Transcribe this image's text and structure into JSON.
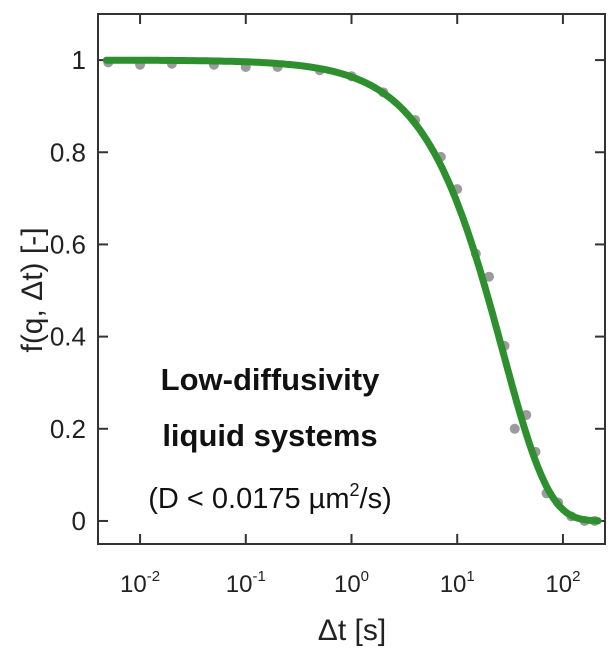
{
  "chart_data": {
    "type": "line",
    "title": "",
    "xlabel": "Δt [s]",
    "ylabel": "f(q, Δt) [-]",
    "x_scale": "log",
    "xlim": [
      0.004,
      250
    ],
    "ylim": [
      -0.05,
      1.1
    ],
    "x_ticks": [
      {
        "value": 0.01,
        "base": "10",
        "exp": "-2"
      },
      {
        "value": 0.1,
        "base": "10",
        "exp": "-1"
      },
      {
        "value": 1,
        "base": "10",
        "exp": "0"
      },
      {
        "value": 10,
        "base": "10",
        "exp": "1"
      },
      {
        "value": 100,
        "base": "10",
        "exp": "2"
      }
    ],
    "y_ticks": [
      {
        "value": 0,
        "label": "0"
      },
      {
        "value": 0.2,
        "label": "0.2"
      },
      {
        "value": 0.4,
        "label": "0.4"
      },
      {
        "value": 0.6,
        "label": "0.6"
      },
      {
        "value": 0.8,
        "label": "0.8"
      },
      {
        "value": 1,
        "label": "1"
      }
    ],
    "grid": false,
    "annotation": {
      "line1": "Low-diffusivity",
      "line2": "liquid systems",
      "line3_prefix": "(D < 0.0175 µm",
      "line3_sup": "2",
      "line3_suffix": "/s)"
    },
    "series": [
      {
        "kind": "points",
        "color": "#7a7a7a",
        "x": [
          0.005,
          0.01,
          0.02,
          0.05,
          0.1,
          0.2,
          0.5,
          1,
          2,
          4,
          7,
          10,
          15,
          20,
          28,
          35,
          45,
          55,
          70,
          90,
          120,
          160,
          200
        ],
        "y": [
          0.995,
          0.99,
          0.992,
          0.99,
          0.985,
          0.985,
          0.978,
          0.965,
          0.93,
          0.87,
          0.79,
          0.72,
          0.58,
          0.53,
          0.38,
          0.2,
          0.23,
          0.15,
          0.06,
          0.04,
          0.01,
          0.0,
          0.0
        ]
      },
      {
        "kind": "fit",
        "color": "#2d8f2d",
        "tau": 27,
        "beta": 1
      }
    ]
  }
}
